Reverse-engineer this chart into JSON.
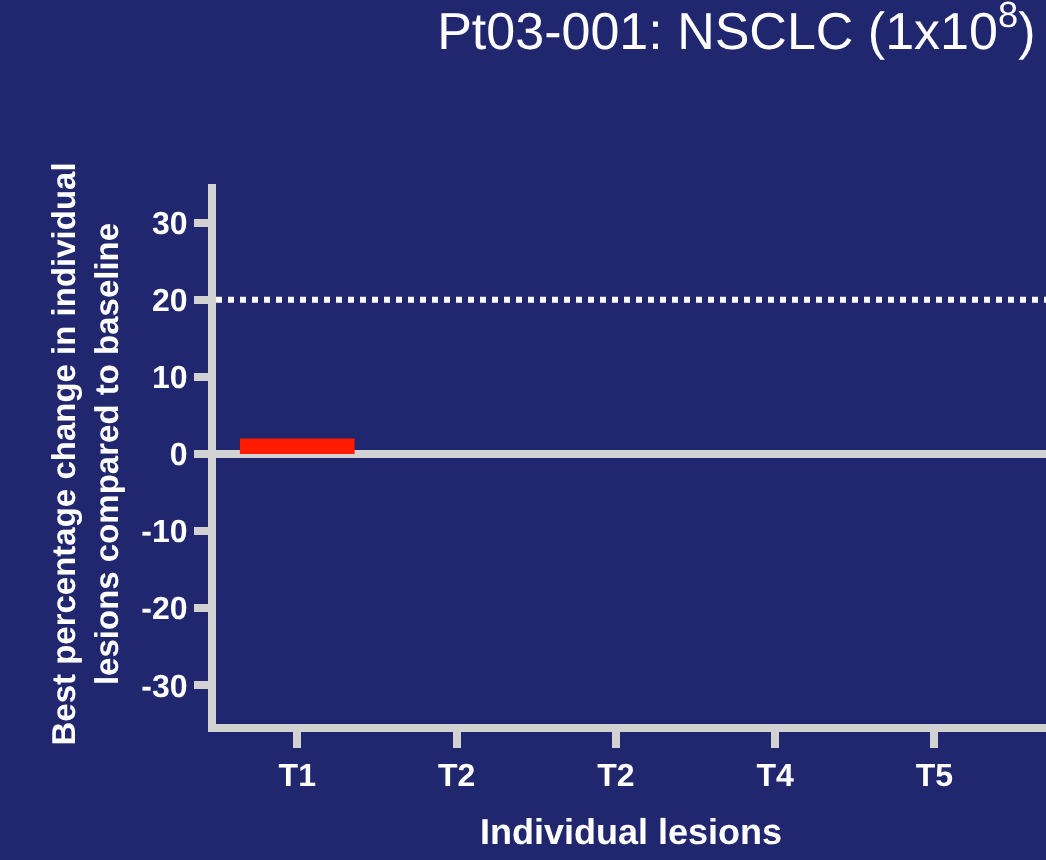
{
  "chart_data": {
    "type": "bar",
    "title": "Pt03-001: NSCLC (1x10$^{8}$)",
    "xlabel": "Individual lesions",
    "ylabel": "Best percentage change in individual\nlesions compared to baseline",
    "categories": [
      "T1",
      "T2",
      "T2",
      "T4",
      "T5"
    ],
    "values": [
      2,
      0,
      0,
      0,
      0
    ],
    "color": "#ff1a00",
    "ylim": [
      -35,
      35
    ],
    "yticks": [
      -30,
      -20,
      -10,
      0,
      10,
      20,
      30
    ],
    "ref_lines": [
      {
        "axis": "y",
        "value": 20,
        "color": "#ffffff",
        "line_style": "dotted"
      }
    ]
  }
}
